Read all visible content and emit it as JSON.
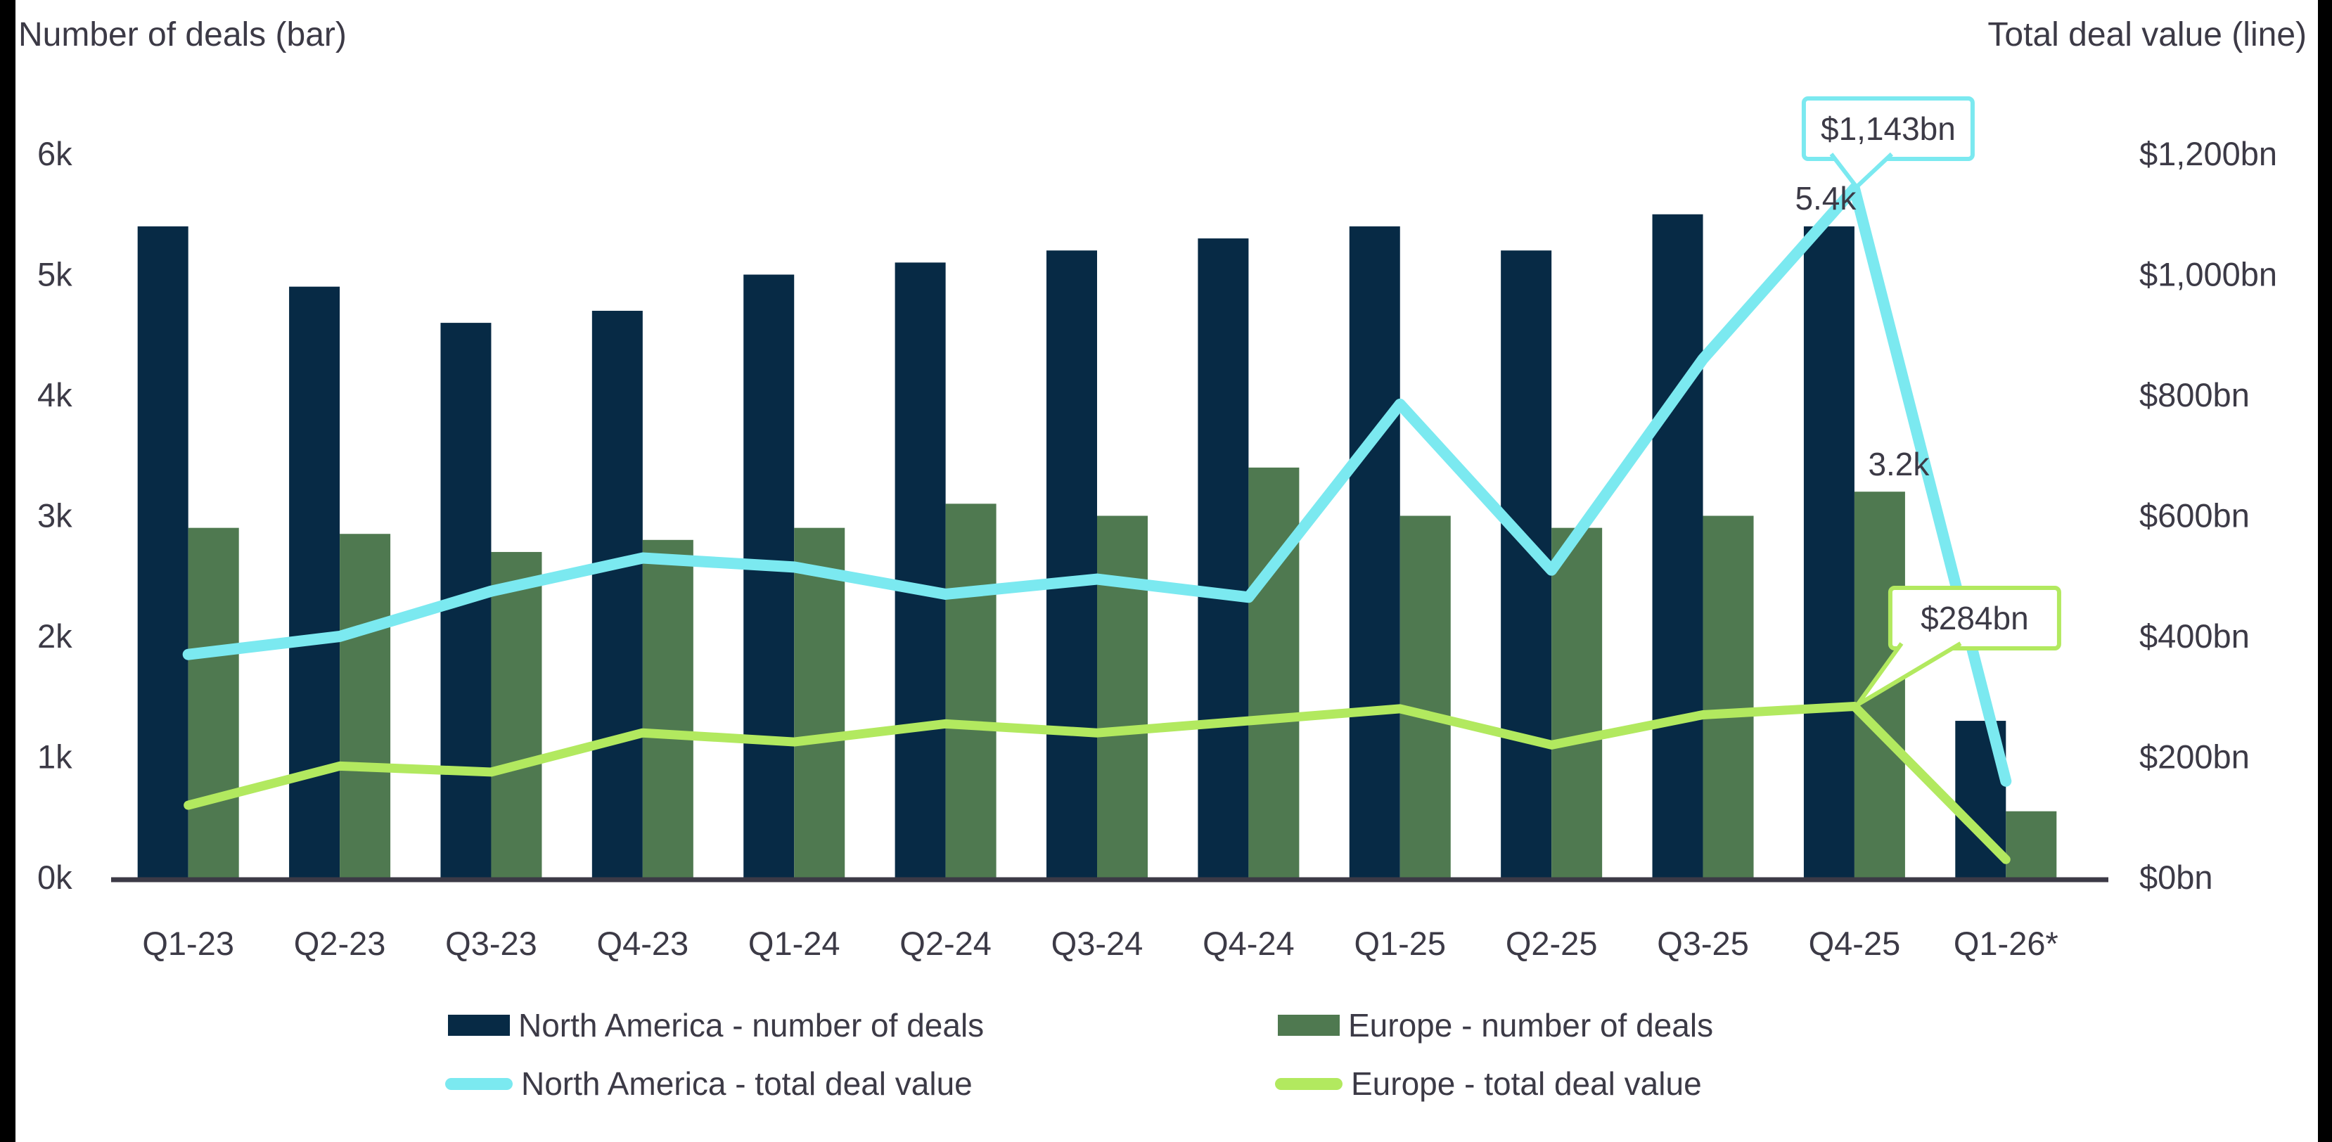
{
  "page": {
    "background_color": "#ffffff",
    "edge_strip_color": "#000000",
    "text_color": "#3C3A46",
    "axis_line_color": "#3C3A46"
  },
  "header": {
    "left_axis_title": "Number of deals (bar)",
    "right_axis_title": "Total deal value (line)"
  },
  "chart_data": {
    "type": "bar+line dual-axis combo",
    "categories": [
      "Q1-23",
      "Q2-23",
      "Q3-23",
      "Q4-23",
      "Q1-24",
      "Q2-24",
      "Q3-24",
      "Q4-24",
      "Q1-25",
      "Q2-25",
      "Q3-25",
      "Q4-25",
      "Q1-26*"
    ],
    "left_axis": {
      "title": "Number of deals (bar)",
      "unit": "thousand deals",
      "ticks": [
        "0k",
        "1k",
        "2k",
        "3k",
        "4k",
        "5k",
        "6k"
      ],
      "tick_values": [
        0,
        1,
        2,
        3,
        4,
        5,
        6
      ],
      "max": 6,
      "grid": false
    },
    "right_axis": {
      "title": "Total deal value (line)",
      "unit": "$bn",
      "ticks": [
        "$0bn",
        "$200bn",
        "$400bn",
        "$600bn",
        "$800bn",
        "$1,000bn",
        "$1,200bn"
      ],
      "tick_values": [
        0,
        200,
        400,
        600,
        800,
        1000,
        1200
      ],
      "max": 1200,
      "grid": false
    },
    "series": [
      {
        "name": "North America - number of deals",
        "type": "bar",
        "axis": "left",
        "color": "#072A45",
        "values": [
          5.4,
          4.9,
          4.6,
          4.7,
          5.0,
          5.1,
          5.2,
          5.3,
          5.4,
          5.2,
          5.5,
          5.4,
          1.3
        ]
      },
      {
        "name": "Europe - number of deals",
        "type": "bar",
        "axis": "left",
        "color": "#4F7950",
        "values": [
          2.9,
          2.85,
          2.7,
          2.8,
          2.9,
          3.1,
          3.0,
          3.4,
          3.0,
          2.9,
          3.0,
          3.2,
          0.55
        ]
      },
      {
        "name": "North America - total deal value",
        "type": "line",
        "axis": "right",
        "color": "#7BE9F0",
        "values": [
          370,
          400,
          475,
          530,
          515,
          470,
          495,
          465,
          785,
          510,
          860,
          1143,
          160
        ]
      },
      {
        "name": "Europe - total deal value",
        "type": "line",
        "axis": "right",
        "color": "#B2E95F",
        "values": [
          120,
          185,
          175,
          240,
          225,
          255,
          240,
          260,
          280,
          220,
          270,
          284,
          30
        ]
      }
    ],
    "annotations": {
      "bar_labels": [
        {
          "series": 0,
          "index": 11,
          "text": "5.4k"
        },
        {
          "series": 1,
          "index": 11,
          "text": "3.2k"
        }
      ],
      "callouts": [
        {
          "series": 2,
          "index": 11,
          "text": "$1,143bn",
          "border_color": "#7BE9F0"
        },
        {
          "series": 3,
          "index": 11,
          "text": "$284bn",
          "border_color": "#B2E95F"
        }
      ]
    },
    "legend": {
      "position": "bottom",
      "entries": [
        {
          "label": "North America - number of deals",
          "swatch": "bar",
          "color": "#072A45"
        },
        {
          "label": "Europe - number of deals",
          "swatch": "bar",
          "color": "#4F7950"
        },
        {
          "label": "North America - total deal value",
          "swatch": "line",
          "color": "#7BE9F0"
        },
        {
          "label": "Europe - total deal value",
          "swatch": "line",
          "color": "#B2E95F"
        }
      ]
    }
  }
}
